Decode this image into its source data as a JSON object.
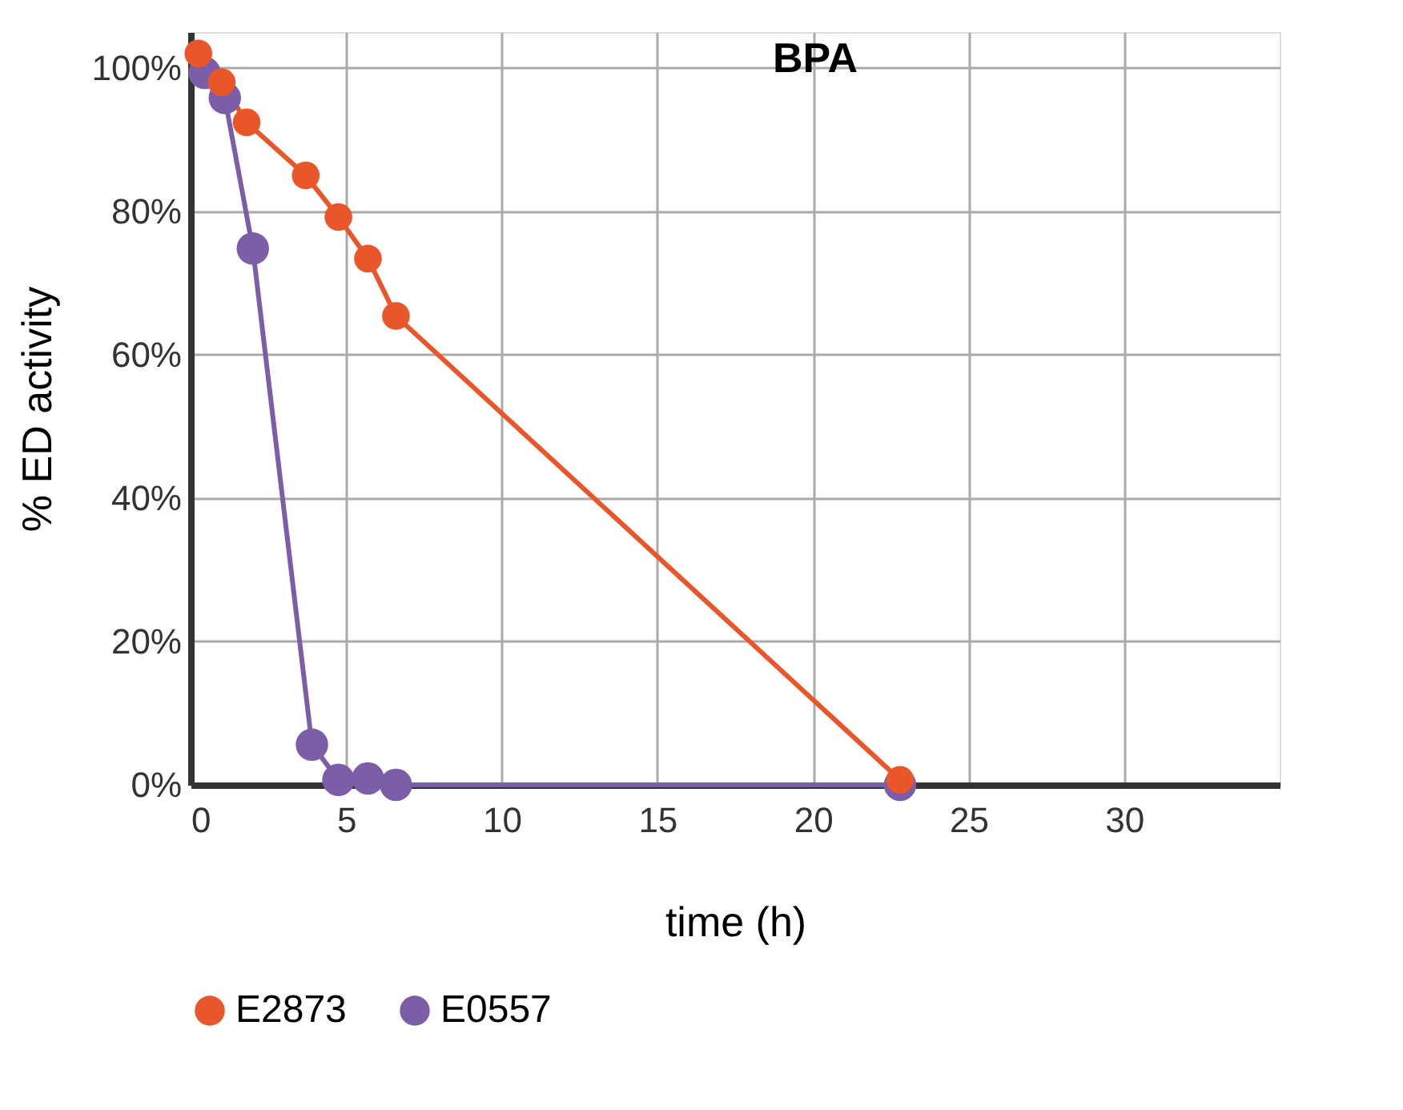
{
  "chart_data": {
    "type": "line",
    "title": "BPA",
    "xlabel": "time (h)",
    "ylabel": "% ED activity",
    "xlim": [
      0,
      35
    ],
    "xticks": [
      0,
      5,
      10,
      15,
      20,
      25,
      30
    ],
    "ylim": [
      0,
      105
    ],
    "yticks": [
      {
        "value": 0,
        "label": "0%"
      },
      {
        "value": 20,
        "label": "20%"
      },
      {
        "value": 40,
        "label": "40%"
      },
      {
        "value": 60,
        "label": "60%"
      },
      {
        "value": 80,
        "label": "80%"
      },
      {
        "value": 100,
        "label": "100%"
      }
    ],
    "grid": true,
    "legend": "bottom",
    "marker": "circle",
    "line_style": "solid",
    "series": [
      {
        "name": "E2873",
        "color": "#e8562a",
        "x": [
          0.25,
          1.0,
          1.8,
          3.7,
          4.75,
          5.7,
          6.6,
          22.8
        ],
        "values": [
          102,
          98,
          92.4,
          85,
          79.2,
          73.4,
          65.4,
          0.7
        ]
      },
      {
        "name": "E0557",
        "color": "#7b5ea7",
        "x": [
          0.45,
          1.1,
          2.0,
          3.9,
          4.75,
          5.7,
          6.6,
          22.8
        ],
        "values": [
          99.3,
          95.8,
          74.8,
          5.6,
          0.7,
          0.9,
          0,
          0
        ]
      }
    ]
  }
}
